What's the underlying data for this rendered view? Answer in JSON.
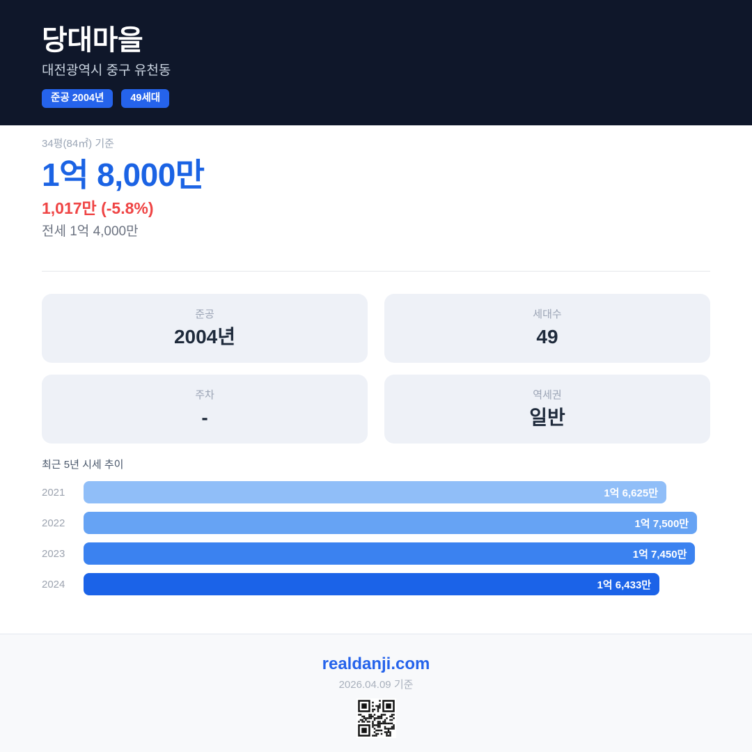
{
  "header": {
    "title": "당대마을",
    "subtitle": "대전광역시 중구 유천동",
    "badges": [
      {
        "label": "준공 2004년"
      },
      {
        "label": "49세대"
      }
    ]
  },
  "price": {
    "basis_label": "34평(84㎡) 기준",
    "main_price": "1억 8,000만",
    "change": "1,017만 (-5.8%)",
    "jeonse": "전세 1억 4,000만"
  },
  "info_cards": [
    {
      "label": "준공",
      "value": "2004년"
    },
    {
      "label": "세대수",
      "value": "49"
    },
    {
      "label": "주차",
      "value": "-"
    },
    {
      "label": "역세권",
      "value": "일반"
    }
  ],
  "chart_data": {
    "type": "bar",
    "orientation": "horizontal",
    "title": "최근 5년 시세 추이",
    "categories": [
      "2021",
      "2022",
      "2023",
      "2024"
    ],
    "values": [
      16625,
      17500,
      17450,
      16433
    ],
    "value_labels": [
      "1억 6,625만",
      "1억 7,500만",
      "1억 7,450만",
      "1억 6,433만"
    ],
    "bar_colors": [
      "#90bef8",
      "#66a3f4",
      "#3b82f0",
      "#1b63e8"
    ],
    "xlim": [
      0,
      17875
    ],
    "unit": "만원",
    "grid": false,
    "legend": "none"
  },
  "footer": {
    "site": "realdanji.com",
    "date_note": "2026.04.09 기준"
  },
  "colors": {
    "header_bg": "#0f172a",
    "badge_blue": "#2563eb",
    "accent_blue": "#1b63e4",
    "negative_red": "#ef4444",
    "card_bg": "#eef1f7",
    "footer_bg": "#f8f9fb"
  }
}
